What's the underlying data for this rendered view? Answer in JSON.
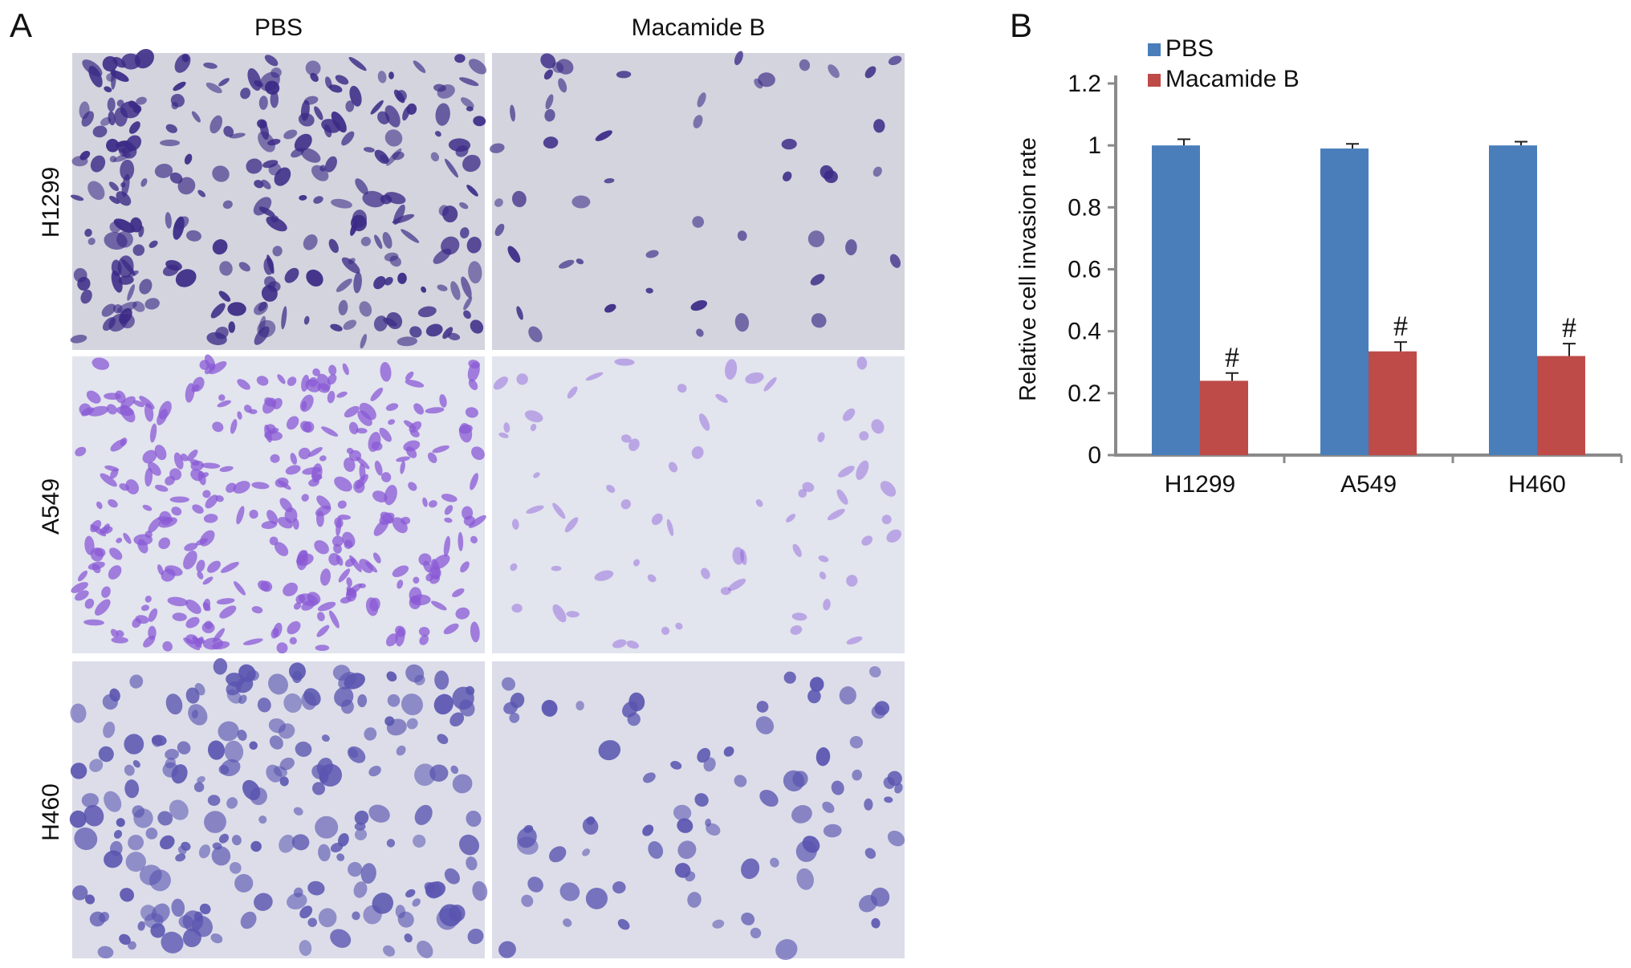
{
  "panel_a": {
    "letter": "A",
    "columns": [
      "PBS",
      "Macamide B"
    ],
    "rows": [
      "H1299",
      "A549",
      "H460"
    ]
  },
  "panel_b": {
    "letter": "B"
  },
  "colors": {
    "pbs": "#4a7ebb",
    "macamide": "#be4b48",
    "stain_dark": "#3b2a86",
    "stain_violet": "#8a5ad6",
    "stain_blue": "#5a55b0"
  },
  "chart_data": {
    "type": "bar",
    "categories": [
      "H1299",
      "A549",
      "H460"
    ],
    "series": [
      {
        "name": "PBS",
        "values": [
          1.0,
          0.99,
          1.0
        ],
        "errors": [
          0.02,
          0.015,
          0.012
        ]
      },
      {
        "name": "Macamide B",
        "values": [
          0.24,
          0.335,
          0.32
        ],
        "errors": [
          0.025,
          0.03,
          0.04
        ]
      }
    ],
    "annotations": [
      "#",
      "#",
      "#"
    ],
    "ylabel": "Relative cell invasion rate",
    "xlabel": "",
    "ylim": [
      0,
      1.2
    ],
    "yticks": [
      "0",
      "0.2",
      "0.4",
      "0.6",
      "0.8",
      "1",
      "1.2"
    ],
    "legend_position": "top-left",
    "grid": false
  }
}
